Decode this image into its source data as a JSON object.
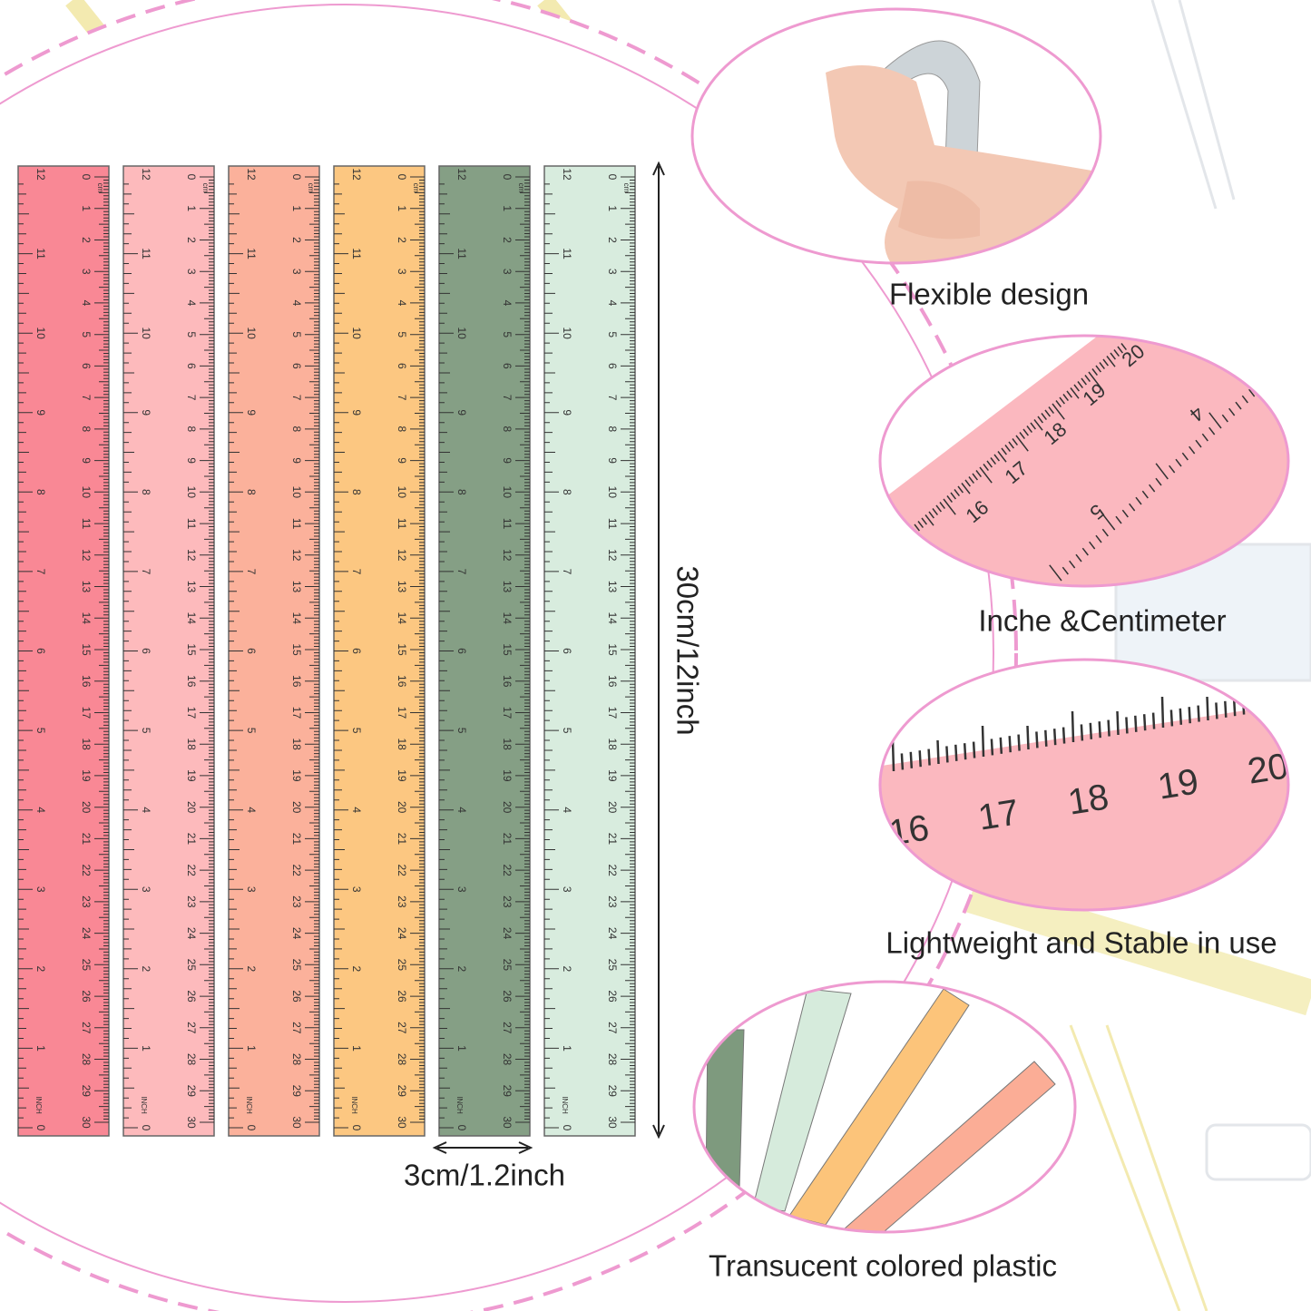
{
  "ruler": {
    "cm_unit": "cm",
    "inch_unit": "INCH",
    "cm_marks": [
      0,
      1,
      2,
      3,
      4,
      5,
      6,
      7,
      8,
      9,
      10,
      11,
      12,
      13,
      14,
      15,
      16,
      17,
      18,
      19,
      20,
      21,
      22,
      23,
      24,
      25,
      26,
      27,
      28,
      29,
      30
    ],
    "inch_marks": [
      0,
      1,
      2,
      3,
      4,
      5,
      6,
      7,
      8,
      9,
      10,
      11,
      12
    ],
    "colors": [
      "#f9828f",
      "#fdb6b8",
      "#fbad96",
      "#fcc47a",
      "#7e9a7e",
      "#d6ebdc"
    ]
  },
  "dimensions": {
    "length": "30cm/12inch",
    "width": "3cm/1.2inch"
  },
  "features": [
    {
      "caption": "Flexible design"
    },
    {
      "caption": "Inche &Centimeter",
      "cm_numbers": [
        "16",
        "17",
        "18",
        "19",
        "20"
      ],
      "inch_numbers": [
        "4",
        "5"
      ]
    },
    {
      "caption": "Lightweight and Stable in use",
      "cm_numbers": [
        "16",
        "17",
        "18",
        "19",
        "20"
      ]
    },
    {
      "caption": "Transucent colored plastic"
    }
  ]
}
